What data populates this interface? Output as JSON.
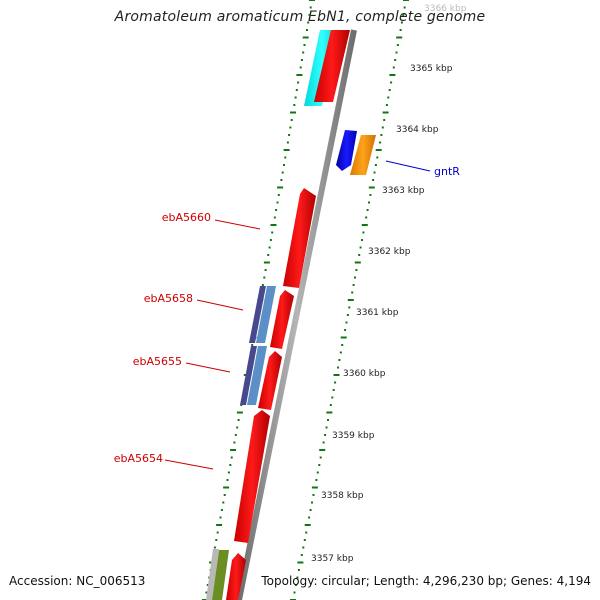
{
  "title": "Aromatoleum aromaticum EbN1, complete genome",
  "footer": {
    "accession": "Accession: NC_006513",
    "topology": "Topology: circular; Length: 4,296,230 bp; Genes: 4,194"
  },
  "ticks": [
    {
      "label": "3366 kbp"
    },
    {
      "label": "3365 kbp"
    },
    {
      "label": "3364 kbp"
    },
    {
      "label": "3363 kbp"
    },
    {
      "label": "3362 kbp"
    },
    {
      "label": "3361 kbp"
    },
    {
      "label": "3360 kbp"
    },
    {
      "label": "3359 kbp"
    },
    {
      "label": "3358 kbp"
    },
    {
      "label": "3357 kbp"
    }
  ],
  "gene_labels": [
    {
      "text": "gntR",
      "color": "#0000cc"
    },
    {
      "text": "ebA5660",
      "color": "#cc0000"
    },
    {
      "text": "ebA5658",
      "color": "#cc0000"
    },
    {
      "text": "ebA5655",
      "color": "#cc0000"
    },
    {
      "text": "ebA5654",
      "color": "#cc0000"
    }
  ],
  "colors": {
    "backbone": "#8c8c8c",
    "forward_gene": "#ff0000",
    "reverse_gene": "#0000ee",
    "orange_gene": "#ff9900",
    "cyan_feature": "#00ffff",
    "navy_feature": "#4a4a99",
    "steel_feature": "#5b8fc8",
    "olive_feature": "#6b8e23",
    "tick_color": "#117711"
  }
}
